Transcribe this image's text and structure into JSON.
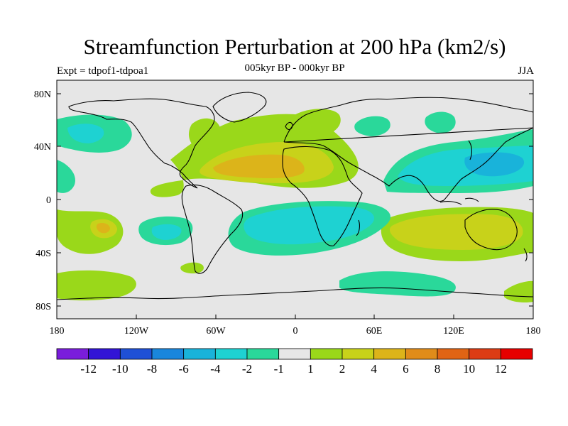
{
  "title": "Streamfunction Perturbation at 200 hPa (km2/s)",
  "subtitle": "005kyr BP - 000kyr BP",
  "left_label": "Expt = tdpof1-tdpoa1",
  "right_label": "JJA",
  "axes": {
    "lat_ticks": [
      "80N",
      "40N",
      "0",
      "40S",
      "80S"
    ],
    "lon_ticks": [
      "180",
      "120W",
      "60W",
      "0",
      "60E",
      "120E",
      "180"
    ]
  },
  "colorbar": {
    "colors": [
      "#7a1ddb",
      "#3214d6",
      "#1f50d6",
      "#1a86dc",
      "#19b3da",
      "#1ed2d2",
      "#2ad89a",
      "#e6e6e6",
      "#9ad81a",
      "#c8d21a",
      "#dcb41a",
      "#e08c1a",
      "#e06414",
      "#dc3c14",
      "#e60000"
    ],
    "labels": [
      "-12",
      "-10",
      "-8",
      "-6",
      "-4",
      "-2",
      "-1",
      "1",
      "2",
      "4",
      "6",
      "8",
      "10",
      "12"
    ]
  },
  "colors": {
    "background": "#e6e6e6",
    "coast": "#000000"
  }
}
